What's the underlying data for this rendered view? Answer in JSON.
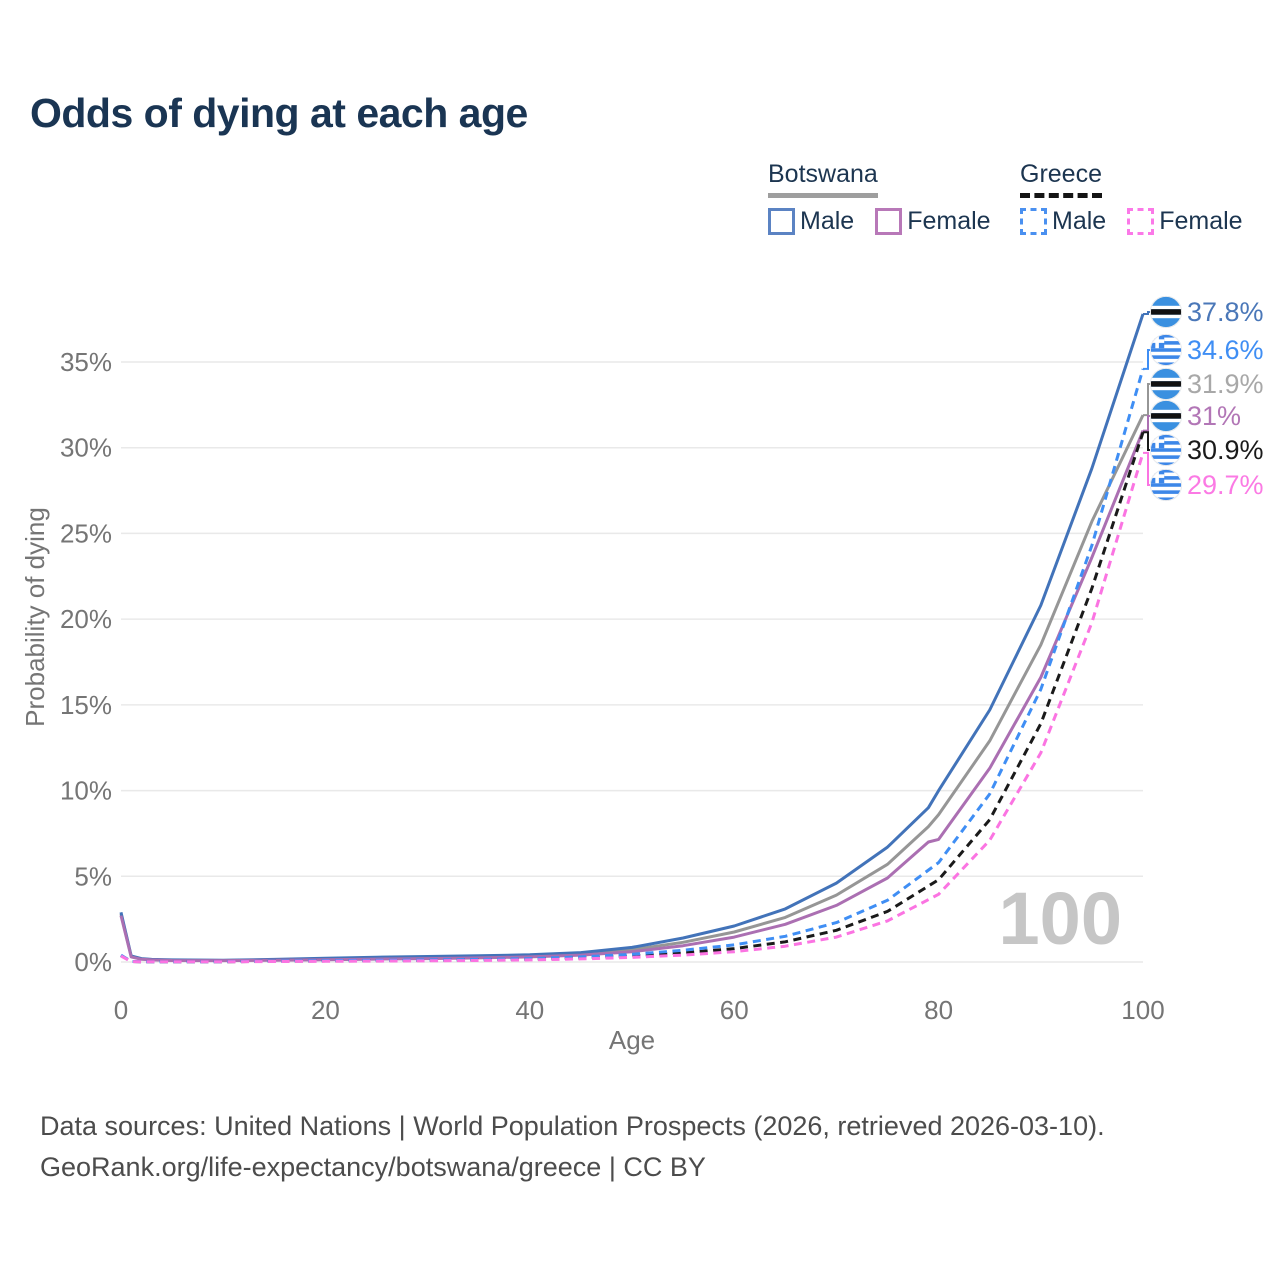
{
  "title": "Odds of dying at each age",
  "legend": {
    "groups": [
      {
        "name": "Botswana",
        "line_style": "solid",
        "line_color": "#9e9e9e",
        "items": [
          {
            "label": "Male",
            "box_color": "#5b83c3",
            "box_style": "solid"
          },
          {
            "label": "Female",
            "box_color": "#b878b8",
            "box_style": "solid"
          }
        ]
      },
      {
        "name": "Greece",
        "line_style": "dashed",
        "line_color": "#141414",
        "items": [
          {
            "label": "Male",
            "box_color": "#4a90f0",
            "box_style": "dashed"
          },
          {
            "label": "Female",
            "box_color": "#fb79e8",
            "box_style": "dashed"
          }
        ]
      }
    ]
  },
  "footer": {
    "line1": "Data sources: United Nations | World Population Prospects (2026, retrieved 2026-03-10).",
    "line2": "GeoRank.org/life-expectancy/botswana/greece | CC BY"
  },
  "chart_data": {
    "type": "line",
    "title": "Odds of dying at each age",
    "xlabel": "Age",
    "ylabel": "Probability of dying",
    "watermark": "100",
    "xlim": [
      0,
      100
    ],
    "ylim": [
      0,
      38
    ],
    "grid": "horizontal",
    "legend_position": "top-right",
    "xticks": [
      {
        "value": 0,
        "label": "0"
      },
      {
        "value": 20,
        "label": "20"
      },
      {
        "value": 40,
        "label": "40"
      },
      {
        "value": 60,
        "label": "60"
      },
      {
        "value": 80,
        "label": "80"
      },
      {
        "value": 100,
        "label": "100"
      }
    ],
    "yticks": [
      {
        "value": 0,
        "label": "0%"
      },
      {
        "value": 5,
        "label": "5%"
      },
      {
        "value": 10,
        "label": "10%"
      },
      {
        "value": 15,
        "label": "15%"
      },
      {
        "value": 20,
        "label": "20%"
      },
      {
        "value": 25,
        "label": "25%"
      },
      {
        "value": 30,
        "label": "30%"
      },
      {
        "value": 35,
        "label": "35%"
      }
    ],
    "series": [
      {
        "id": "botswana-male",
        "name": "Botswana Male",
        "country": "Botswana",
        "sex": "Male",
        "color": "#4273b9",
        "dash": false,
        "flag": "botswana",
        "end_label": "37.8%",
        "end_label_color": "#4a77b8",
        "end_value": 37.8,
        "points": [
          [
            0,
            2.9
          ],
          [
            1,
            0.35
          ],
          [
            2,
            0.2
          ],
          [
            3,
            0.15
          ],
          [
            5,
            0.12
          ],
          [
            10,
            0.1
          ],
          [
            15,
            0.15
          ],
          [
            20,
            0.22
          ],
          [
            25,
            0.28
          ],
          [
            30,
            0.32
          ],
          [
            35,
            0.36
          ],
          [
            40,
            0.42
          ],
          [
            45,
            0.55
          ],
          [
            50,
            0.85
          ],
          [
            55,
            1.4
          ],
          [
            60,
            2.1
          ],
          [
            65,
            3.1
          ],
          [
            70,
            4.6
          ],
          [
            75,
            6.7
          ],
          [
            79,
            9.0
          ],
          [
            80,
            10.0
          ],
          [
            85,
            14.7
          ],
          [
            90,
            20.8
          ],
          [
            95,
            28.8
          ],
          [
            100,
            37.8
          ]
        ]
      },
      {
        "id": "greece-male",
        "name": "Greece Male",
        "country": "Greece",
        "sex": "Male",
        "color": "#3f8ef4",
        "dash": true,
        "flag": "greece",
        "end_label": "34.6%",
        "end_label_color": "#3f8ef4",
        "end_value": 34.6,
        "points": [
          [
            0,
            0.4
          ],
          [
            1,
            0.03
          ],
          [
            2,
            0.02
          ],
          [
            3,
            0.02
          ],
          [
            5,
            0.015
          ],
          [
            10,
            0.015
          ],
          [
            15,
            0.05
          ],
          [
            20,
            0.08
          ],
          [
            25,
            0.1
          ],
          [
            30,
            0.12
          ],
          [
            35,
            0.15
          ],
          [
            40,
            0.2
          ],
          [
            45,
            0.3
          ],
          [
            50,
            0.45
          ],
          [
            55,
            0.68
          ],
          [
            60,
            1.0
          ],
          [
            65,
            1.5
          ],
          [
            70,
            2.3
          ],
          [
            75,
            3.6
          ],
          [
            80,
            5.8
          ],
          [
            85,
            9.8
          ],
          [
            90,
            15.9
          ],
          [
            95,
            24.3
          ],
          [
            100,
            34.6
          ]
        ]
      },
      {
        "id": "botswana-total",
        "name": "Botswana (both sexes)",
        "country": "Botswana",
        "sex": "Both",
        "color": "#969696",
        "dash": false,
        "flag": "botswana",
        "end_label": "31.9%",
        "end_label_color": "#a8a8a8",
        "end_value": 31.9,
        "points": [
          [
            0,
            2.8
          ],
          [
            1,
            0.32
          ],
          [
            2,
            0.18
          ],
          [
            3,
            0.13
          ],
          [
            5,
            0.1
          ],
          [
            10,
            0.09
          ],
          [
            15,
            0.12
          ],
          [
            20,
            0.17
          ],
          [
            25,
            0.22
          ],
          [
            30,
            0.26
          ],
          [
            35,
            0.3
          ],
          [
            40,
            0.36
          ],
          [
            45,
            0.47
          ],
          [
            50,
            0.72
          ],
          [
            55,
            1.15
          ],
          [
            60,
            1.75
          ],
          [
            65,
            2.6
          ],
          [
            70,
            3.9
          ],
          [
            75,
            5.7
          ],
          [
            79,
            7.9
          ],
          [
            80,
            8.6
          ],
          [
            85,
            12.9
          ],
          [
            90,
            18.5
          ],
          [
            95,
            25.7
          ],
          [
            100,
            31.9
          ]
        ]
      },
      {
        "id": "botswana-female",
        "name": "Botswana Female",
        "country": "Botswana",
        "sex": "Female",
        "color": "#ab6fb2",
        "dash": false,
        "flag": "botswana",
        "end_label": "31%",
        "end_label_color": "#b276b6",
        "end_value": 31.0,
        "points": [
          [
            0,
            2.7
          ],
          [
            1,
            0.3
          ],
          [
            2,
            0.16
          ],
          [
            3,
            0.12
          ],
          [
            5,
            0.09
          ],
          [
            10,
            0.08
          ],
          [
            15,
            0.1
          ],
          [
            20,
            0.13
          ],
          [
            25,
            0.17
          ],
          [
            30,
            0.2
          ],
          [
            35,
            0.24
          ],
          [
            40,
            0.3
          ],
          [
            45,
            0.4
          ],
          [
            50,
            0.6
          ],
          [
            55,
            0.95
          ],
          [
            60,
            1.45
          ],
          [
            65,
            2.2
          ],
          [
            70,
            3.3
          ],
          [
            75,
            4.9
          ],
          [
            79,
            7.0
          ],
          [
            80,
            7.15
          ],
          [
            85,
            11.3
          ],
          [
            90,
            16.6
          ],
          [
            95,
            23.6
          ],
          [
            100,
            31.0
          ]
        ]
      },
      {
        "id": "greece-total",
        "name": "Greece (both sexes)",
        "country": "Greece",
        "sex": "Both",
        "color": "#1a1a1a",
        "dash": true,
        "flag": "greece",
        "end_label": "30.9%",
        "end_label_color": "#1a1a1a",
        "end_value": 30.9,
        "points": [
          [
            0,
            0.38
          ],
          [
            1,
            0.03
          ],
          [
            2,
            0.02
          ],
          [
            3,
            0.015
          ],
          [
            5,
            0.012
          ],
          [
            10,
            0.012
          ],
          [
            15,
            0.04
          ],
          [
            20,
            0.06
          ],
          [
            25,
            0.08
          ],
          [
            30,
            0.09
          ],
          [
            35,
            0.12
          ],
          [
            40,
            0.16
          ],
          [
            45,
            0.24
          ],
          [
            50,
            0.36
          ],
          [
            55,
            0.53
          ],
          [
            60,
            0.78
          ],
          [
            65,
            1.18
          ],
          [
            70,
            1.85
          ],
          [
            75,
            2.95
          ],
          [
            80,
            4.8
          ],
          [
            85,
            8.3
          ],
          [
            90,
            13.9
          ],
          [
            95,
            21.8
          ],
          [
            100,
            30.9
          ]
        ]
      },
      {
        "id": "greece-female",
        "name": "Greece Female",
        "country": "Greece",
        "sex": "Female",
        "color": "#fb74e2",
        "dash": true,
        "flag": "greece",
        "end_label": "29.7%",
        "end_label_color": "#fb7ae4",
        "end_value": 29.7,
        "points": [
          [
            0,
            0.35
          ],
          [
            1,
            0.025
          ],
          [
            2,
            0.015
          ],
          [
            3,
            0.012
          ],
          [
            5,
            0.01
          ],
          [
            10,
            0.01
          ],
          [
            15,
            0.03
          ],
          [
            20,
            0.04
          ],
          [
            25,
            0.05
          ],
          [
            30,
            0.07
          ],
          [
            35,
            0.09
          ],
          [
            40,
            0.12
          ],
          [
            45,
            0.18
          ],
          [
            50,
            0.27
          ],
          [
            55,
            0.4
          ],
          [
            60,
            0.6
          ],
          [
            65,
            0.92
          ],
          [
            70,
            1.45
          ],
          [
            75,
            2.4
          ],
          [
            80,
            3.95
          ],
          [
            85,
            7.1
          ],
          [
            90,
            12.2
          ],
          [
            95,
            19.8
          ],
          [
            100,
            29.7
          ]
        ]
      }
    ]
  }
}
